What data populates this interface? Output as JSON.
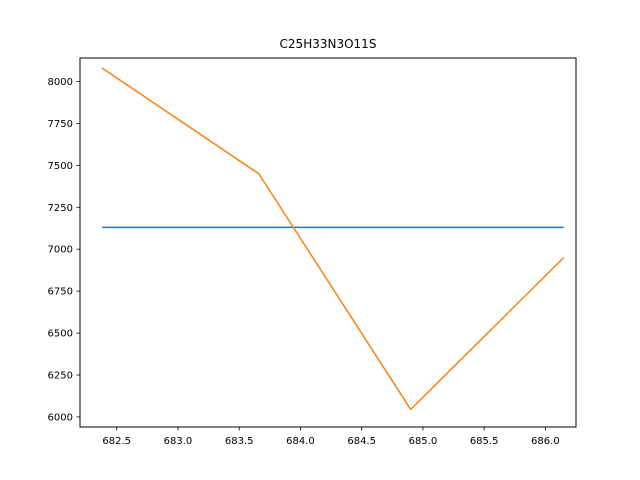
{
  "chart_data": {
    "type": "line",
    "title": "C25H33N3O11S",
    "xlabel": "",
    "ylabel": "",
    "xlim": [
      682.2,
      686.25
    ],
    "ylim": [
      5940,
      8140
    ],
    "grid": false,
    "x_ticks": [
      682.5,
      683.0,
      683.5,
      684.0,
      684.5,
      685.0,
      685.5,
      686.0
    ],
    "x_tick_labels": [
      "682.5",
      "683.0",
      "683.5",
      "684.0",
      "684.5",
      "685.0",
      "685.5",
      "686.0"
    ],
    "y_ticks": [
      6000,
      6250,
      6500,
      6750,
      7000,
      7250,
      7500,
      7750,
      8000
    ],
    "y_tick_labels": [
      "6000",
      "6250",
      "6500",
      "6750",
      "7000",
      "7250",
      "7500",
      "7750",
      "8000"
    ],
    "series": [
      {
        "color": "#1f77b4",
        "x": [
          682.38,
          686.15
        ],
        "y": [
          7130,
          7130
        ]
      },
      {
        "color": "#ff7f0e",
        "x": [
          682.38,
          683.66,
          684.9,
          686.15
        ],
        "y": [
          8080,
          7450,
          6045,
          6950
        ]
      }
    ]
  }
}
